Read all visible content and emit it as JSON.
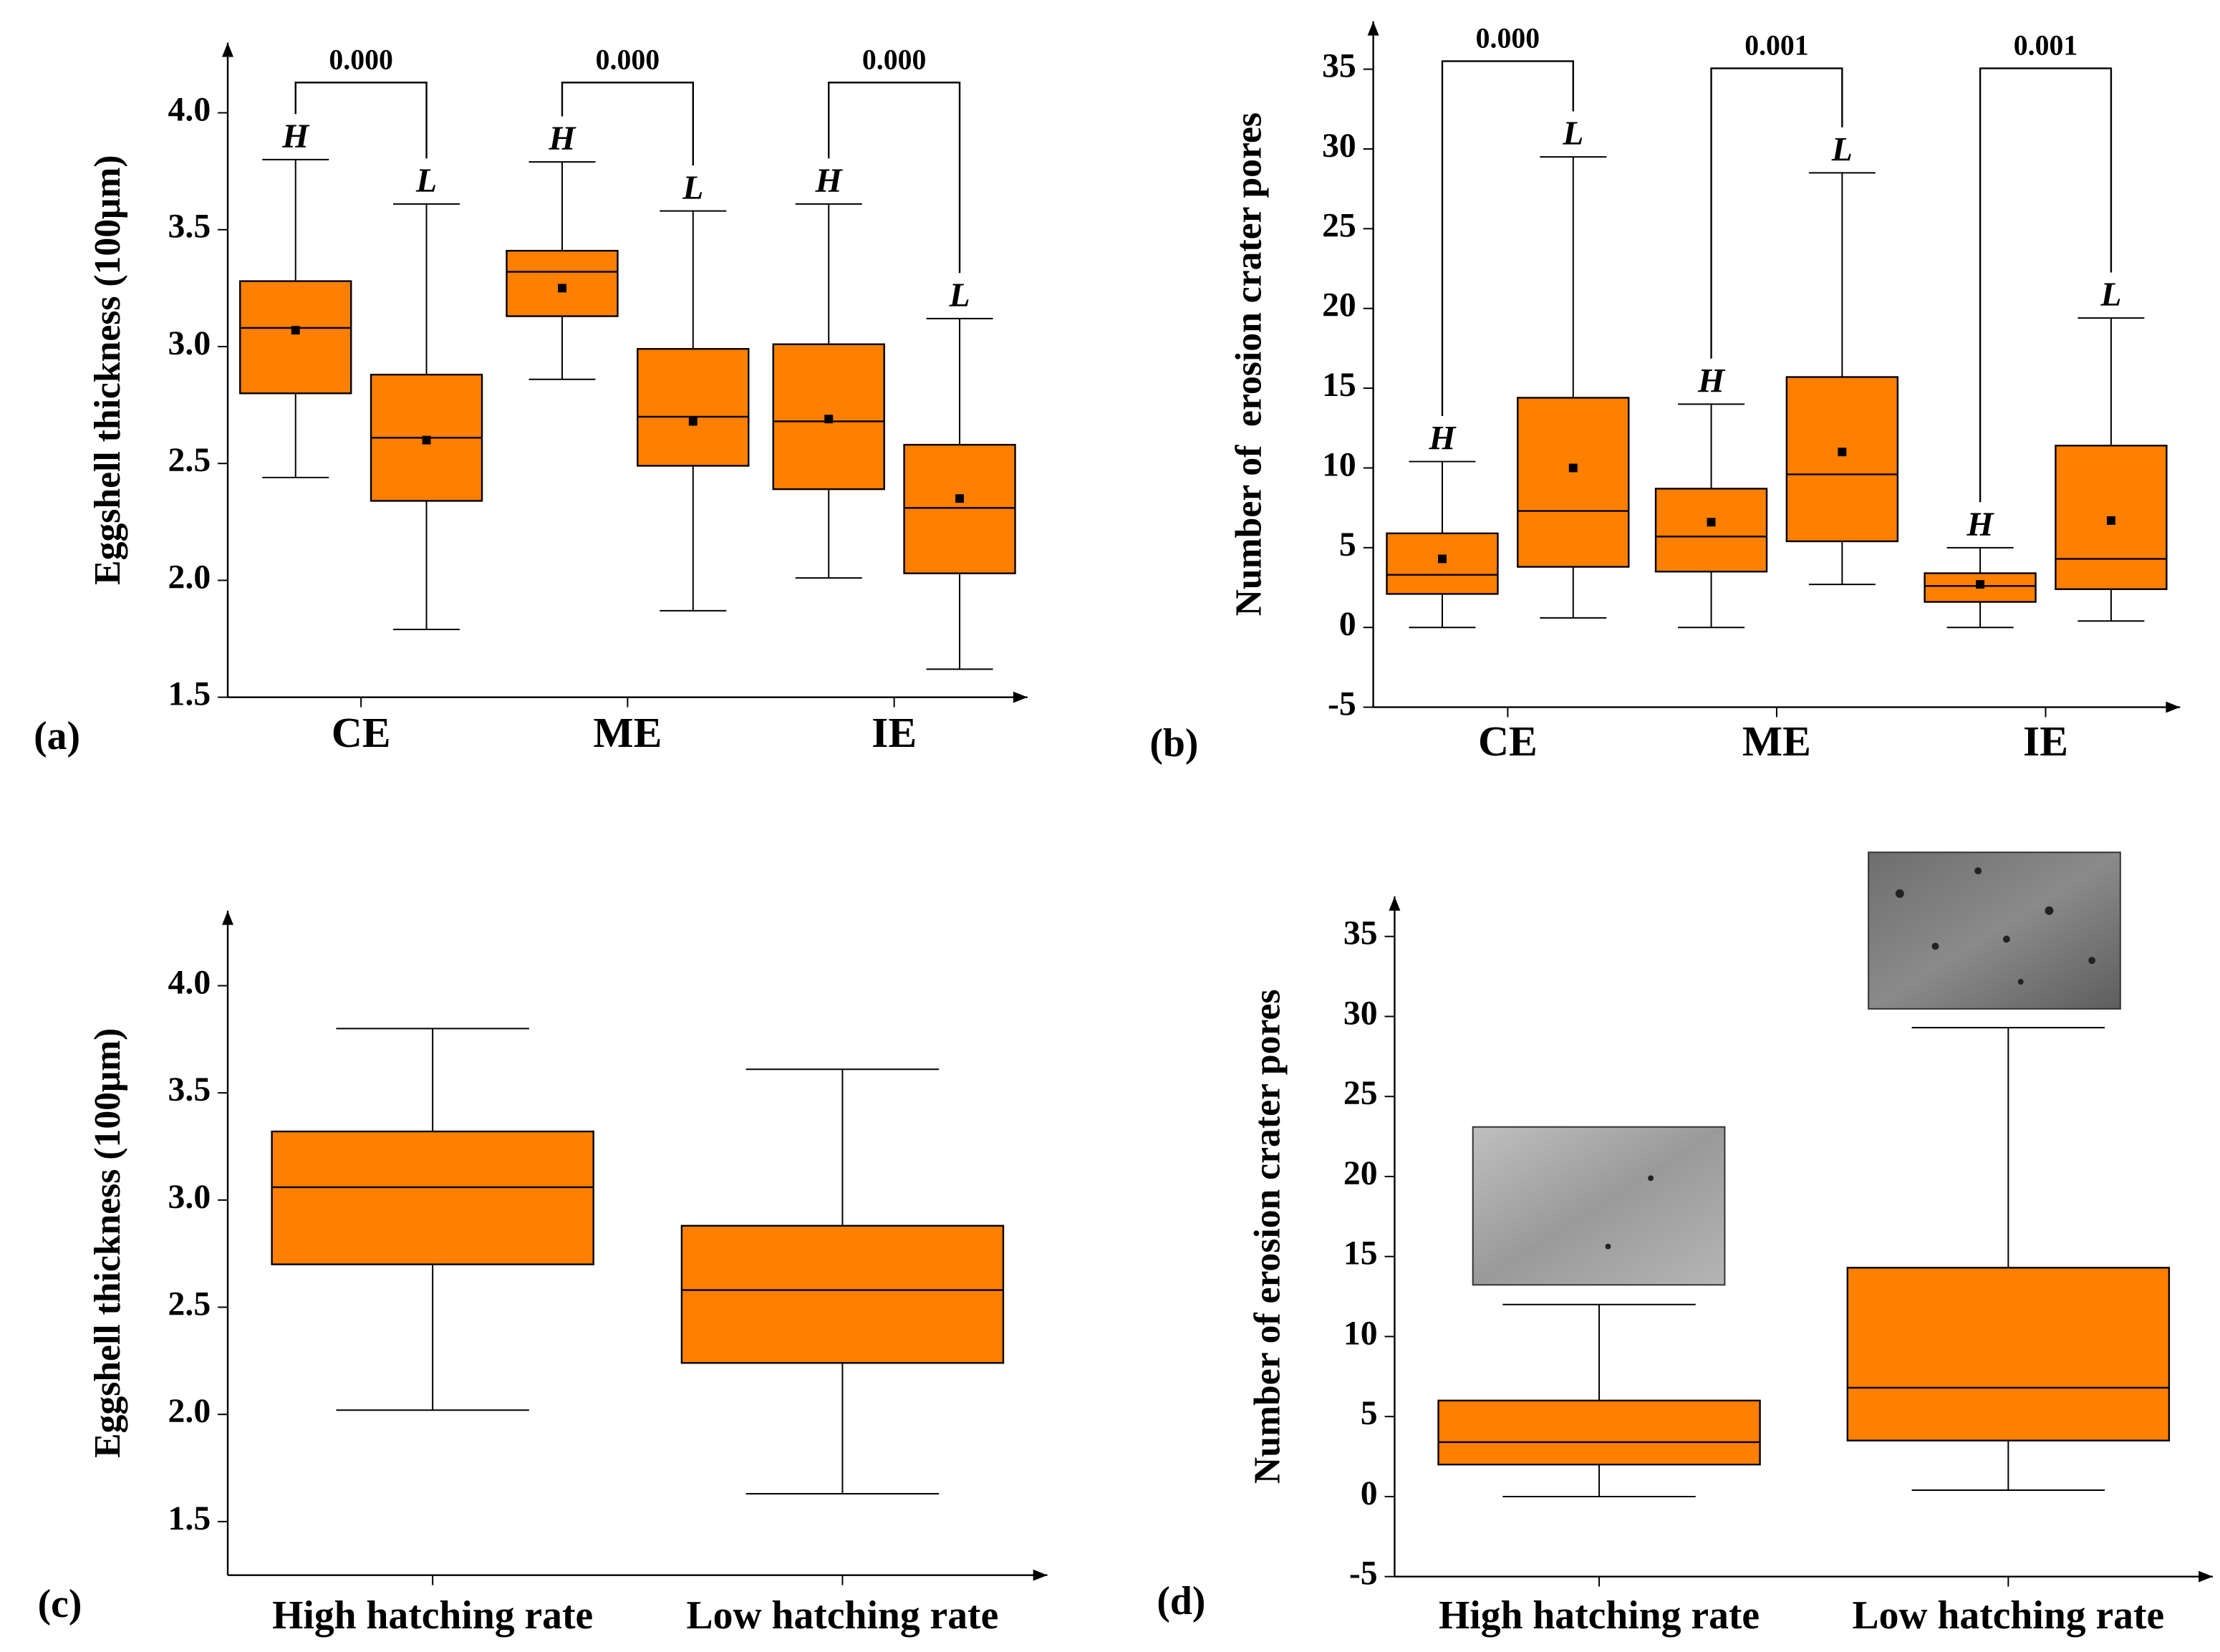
{
  "chart_data": [
    {
      "type": "box",
      "panel_label": "(a)",
      "y_label": "Eggshell thickness (100μm)",
      "categories": [
        "CE",
        "ME",
        "IE"
      ],
      "ylim": [
        1.5,
        4.3
      ],
      "yticks": [
        {
          "value": 1.5,
          "label": "1.5"
        },
        {
          "value": 2,
          "label": "2.0"
        },
        {
          "value": 2.5,
          "label": "2.5"
        },
        {
          "value": 3,
          "label": "3.0"
        },
        {
          "value": 3.5,
          "label": "3.5"
        },
        {
          "value": 4,
          "label": "4.0"
        }
      ],
      "series": [
        {
          "name": "H",
          "color": "#ff7f00",
          "min": [
            2.44,
            2.86,
            2.01
          ],
          "q1": [
            2.8,
            3.13,
            2.39
          ],
          "median": [
            3.08,
            3.32,
            2.68
          ],
          "q3": [
            3.28,
            3.41,
            3.01
          ],
          "max": [
            3.8,
            3.79,
            3.61
          ],
          "mean": [
            3.07,
            3.25,
            2.69
          ]
        },
        {
          "name": "L",
          "color": "#ff7f00",
          "min": [
            1.79,
            1.87,
            1.62
          ],
          "q1": [
            2.34,
            2.49,
            2.03
          ],
          "median": [
            2.61,
            2.7,
            2.31
          ],
          "q3": [
            2.88,
            2.99,
            2.58
          ],
          "max": [
            3.61,
            3.58,
            3.12
          ],
          "mean": [
            2.6,
            2.68,
            2.35
          ]
        }
      ],
      "p_values": [
        "0.000",
        "0.000",
        "0.000"
      ]
    },
    {
      "type": "box",
      "panel_label": "(b)",
      "y_label": "Number of  erosion crater pores",
      "categories": [
        "CE",
        "ME",
        "IE"
      ],
      "ylim": [
        -5,
        38
      ],
      "yticks": [
        -5,
        0,
        5,
        10,
        15,
        20,
        25,
        30,
        35
      ],
      "series": [
        {
          "name": "H",
          "color": "#ff7f00",
          "min": [
            0,
            0,
            0
          ],
          "q1": [
            2.1,
            3.5,
            1.6
          ],
          "median": [
            3.3,
            5.7,
            2.6
          ],
          "q3": [
            5.9,
            8.7,
            3.4
          ],
          "max": [
            10.4,
            14.0,
            5.0
          ],
          "mean": [
            4.3,
            6.6,
            2.7
          ]
        },
        {
          "name": "L",
          "color": "#ff7f00",
          "min": [
            0.6,
            2.7,
            0.4
          ],
          "q1": [
            3.8,
            5.4,
            2.4
          ],
          "median": [
            7.3,
            9.6,
            4.3
          ],
          "q3": [
            14.4,
            15.7,
            11.4
          ],
          "max": [
            29.5,
            28.5,
            19.4
          ],
          "mean": [
            10.0,
            11.0,
            6.7
          ]
        }
      ],
      "p_values": [
        "0.000",
        "0.001",
        "0.001"
      ]
    },
    {
      "type": "box",
      "panel_label": "(c)",
      "y_label": "Eggshell thickness (100μm)",
      "categories": [
        "High hatching rate",
        "Low hatching rate"
      ],
      "ylim": [
        1.25,
        4.35
      ],
      "yticks": [
        {
          "value": 1.5,
          "label": "1.5"
        },
        {
          "value": 2,
          "label": "2.0"
        },
        {
          "value": 2.5,
          "label": "2.5"
        },
        {
          "value": 3,
          "label": "3.0"
        },
        {
          "value": 3.5,
          "label": "3.5"
        },
        {
          "value": 4,
          "label": "4.0"
        }
      ],
      "series": [
        {
          "color": "#ff7f00",
          "min": [
            2.02,
            1.63
          ],
          "q1": [
            2.7,
            2.24
          ],
          "median": [
            3.06,
            2.58
          ],
          "q3": [
            3.32,
            2.88
          ],
          "max": [
            3.8,
            3.61
          ]
        }
      ]
    },
    {
      "type": "box",
      "panel_label": "(d)",
      "y_label": "Number of erosion crater pores",
      "categories": [
        "High hatching rate",
        "Low hatching rate"
      ],
      "ylim": [
        -5,
        37.5
      ],
      "yticks": [
        -5,
        0,
        5,
        10,
        15,
        20,
        25,
        30,
        35
      ],
      "series": [
        {
          "color": "#ff7f00",
          "min": [
            0,
            0.4
          ],
          "q1": [
            2.0,
            3.5
          ],
          "median": [
            3.4,
            6.8
          ],
          "q3": [
            6.0,
            14.3
          ],
          "max": [
            12.0,
            29.3
          ]
        }
      ]
    }
  ]
}
